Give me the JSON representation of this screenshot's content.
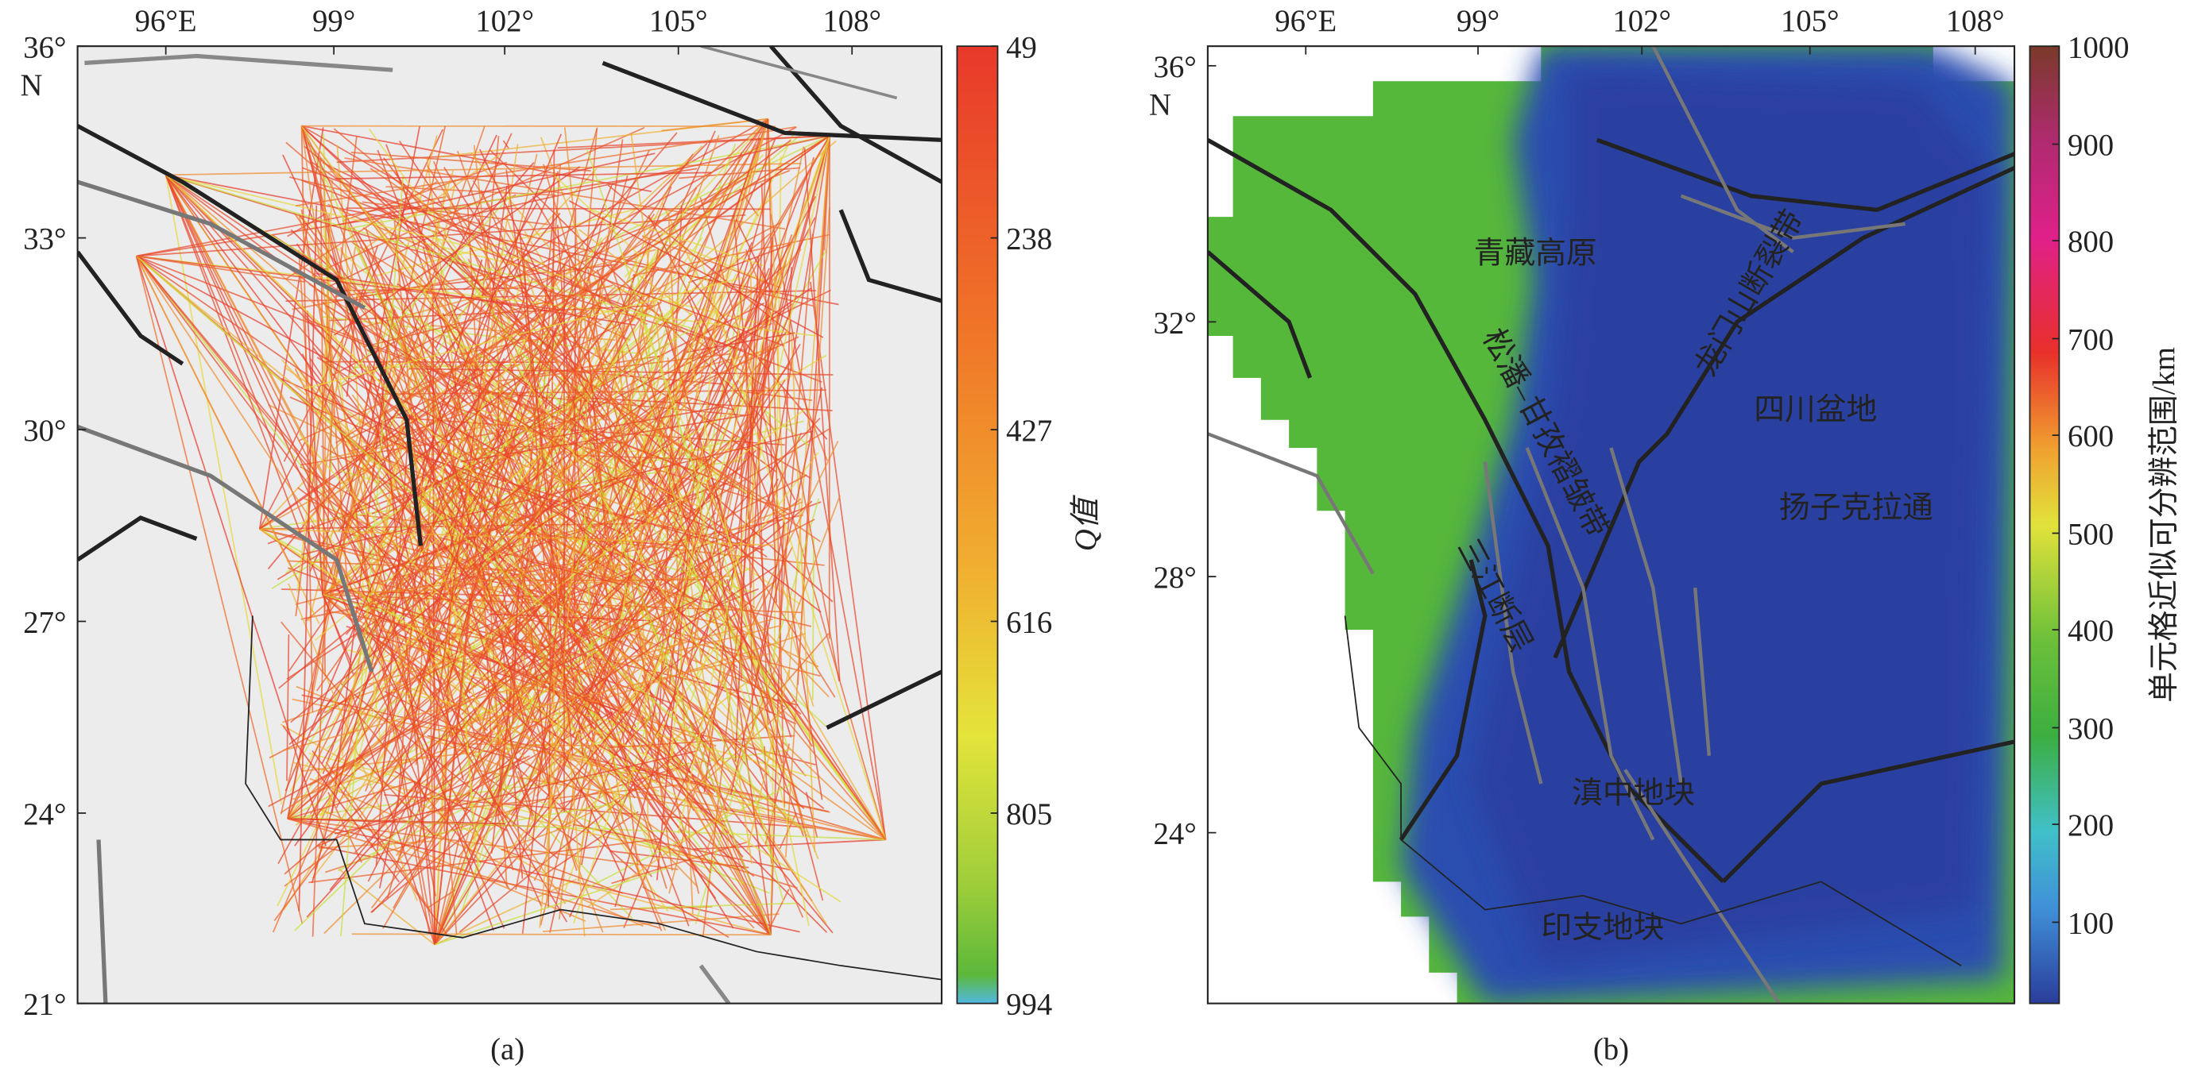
{
  "panel_a": {
    "x_ticks": [
      "96°E",
      "99°",
      "102°",
      "105°",
      "108°"
    ],
    "y_ticks": [
      "36°",
      "33°",
      "30°",
      "27°",
      "24°",
      "21°"
    ],
    "y_unit": "N",
    "colorbar": {
      "ticks": [
        "49",
        "238",
        "427",
        "616",
        "805",
        "994"
      ],
      "label": "Q值"
    },
    "caption": "(a)"
  },
  "panel_b": {
    "x_ticks": [
      "96°E",
      "99°",
      "102°",
      "105°",
      "108°"
    ],
    "y_ticks": [
      "36°",
      "32°",
      "28°",
      "24°"
    ],
    "y_unit": "N",
    "colorbar": {
      "ticks": [
        "1000",
        "900",
        "800",
        "700",
        "600",
        "500",
        "400",
        "300",
        "200",
        "100"
      ],
      "label": "单元格近似可分辨范围/km"
    },
    "annotations": [
      "青藏高原",
      "龙门山断裂带",
      "四川盆地",
      "松潘–甘孜褶皱带",
      "扬子克拉通",
      "三江断层",
      "滇中地块",
      "印支地块"
    ],
    "caption": "(b)"
  }
}
